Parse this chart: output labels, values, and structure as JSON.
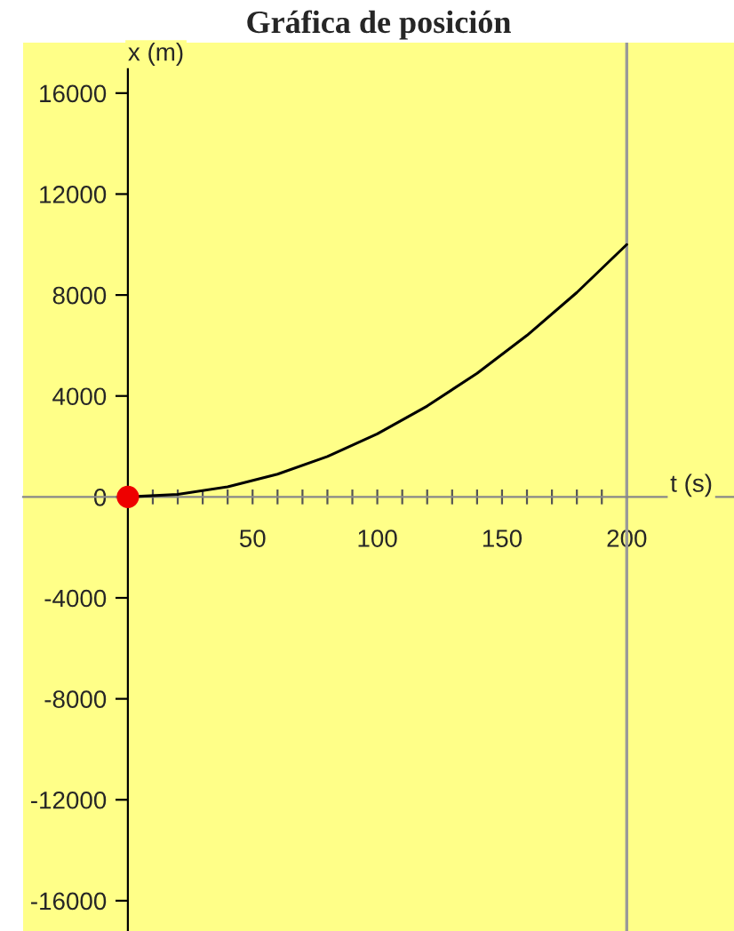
{
  "chart_data": {
    "type": "line",
    "title": "Gráfica de posición",
    "xlabel": "t (s)",
    "ylabel": "x (m)",
    "x": [
      0,
      20,
      40,
      60,
      80,
      100,
      120,
      140,
      160,
      180,
      200
    ],
    "series": [
      {
        "color": "#000000",
        "values": [
          0,
          100,
          400,
          900,
          1600,
          2500,
          3600,
          4900,
          6400,
          8100,
          10000
        ]
      },
      {
        "type": "scatter",
        "marker": "circle",
        "color": "#ee0000",
        "x": [
          0
        ],
        "values": [
          0
        ]
      }
    ],
    "xlim": [
      -42,
      243
    ],
    "ylim": [
      -17200,
      18000
    ],
    "xticks": [
      {
        "value": 10,
        "label": null
      },
      {
        "value": 20,
        "label": null
      },
      {
        "value": 30,
        "label": null
      },
      {
        "value": 40,
        "label": null
      },
      50,
      {
        "value": 60,
        "label": null
      },
      {
        "value": 70,
        "label": null
      },
      {
        "value": 80,
        "label": null
      },
      {
        "value": 90,
        "label": null
      },
      100,
      {
        "value": 110,
        "label": null
      },
      {
        "value": 120,
        "label": null
      },
      {
        "value": 130,
        "label": null
      },
      {
        "value": 140,
        "label": null
      },
      150,
      {
        "value": 160,
        "label": null
      },
      {
        "value": 170,
        "label": null
      },
      {
        "value": 180,
        "label": null
      },
      {
        "value": 190,
        "label": null
      },
      200
    ],
    "yticks": [
      -16000,
      -12000,
      -8000,
      -4000,
      0,
      4000,
      8000,
      12000,
      16000
    ],
    "ref_lines": [
      {
        "axis": "x",
        "value": 200,
        "color": "#999999"
      }
    ],
    "grid": false,
    "legend": false,
    "marker": "none",
    "line_style": "solid"
  }
}
